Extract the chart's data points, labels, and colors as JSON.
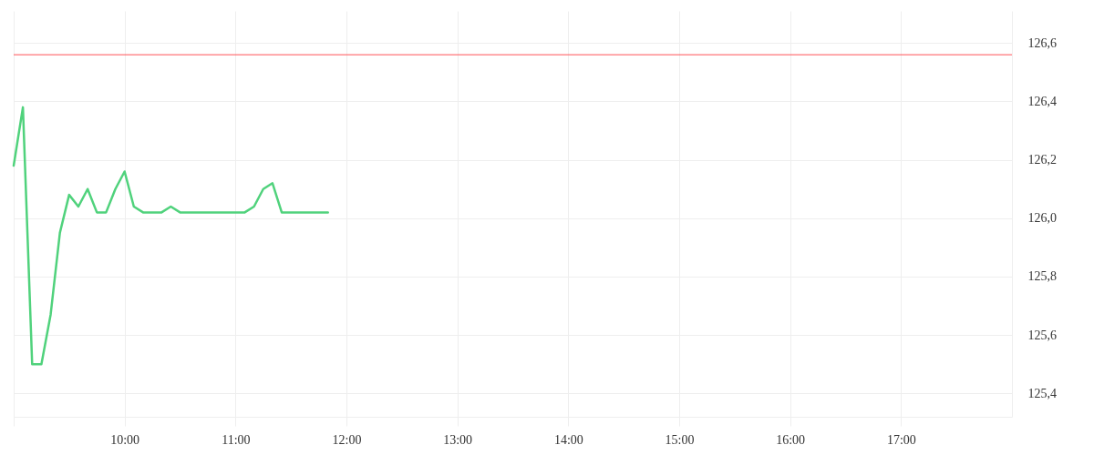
{
  "chart_data": {
    "type": "line",
    "x": [
      9,
      9.0833,
      9.1667,
      9.25,
      9.3333,
      9.4167,
      9.5,
      9.5833,
      9.6667,
      9.75,
      9.8333,
      9.9167,
      10,
      10.0833,
      10.1667,
      10.25,
      10.3333,
      10.4167,
      10.5,
      10.5833,
      10.6667,
      10.75,
      10.8333,
      10.9167,
      11,
      11.0833,
      11.1667,
      11.25,
      11.3333,
      11.4167,
      11.5,
      11.5833,
      11.6667,
      11.75,
      11.8333
    ],
    "series": [
      {
        "color": "#50d27c",
        "values": [
          126.18,
          126.38,
          125.5,
          125.5,
          125.67,
          125.95,
          126.08,
          126.04,
          126.1,
          126.02,
          126.02,
          126.1,
          126.16,
          126.04,
          126.02,
          126.02,
          126.02,
          126.04,
          126.02,
          126.02,
          126.02,
          126.02,
          126.02,
          126.02,
          126.02,
          126.02,
          126.04,
          126.1,
          126.12,
          126.02,
          126.02,
          126.02,
          126.02,
          126.02,
          126.02
        ]
      }
    ],
    "xlim": [
      9,
      18
    ],
    "xticks": [
      {
        "value": 9,
        "label": null
      },
      {
        "value": 10,
        "label": "10:00"
      },
      {
        "value": 11,
        "label": "11:00"
      },
      {
        "value": 12,
        "label": "12:00"
      },
      {
        "value": 13,
        "label": "13:00"
      },
      {
        "value": 14,
        "label": "14:00"
      },
      {
        "value": 15,
        "label": "15:00"
      },
      {
        "value": 16,
        "label": "16:00"
      },
      {
        "value": 17,
        "label": "17:00"
      }
    ],
    "ylim": [
      125.32,
      126.71
    ],
    "yticks": [
      {
        "value": 125.4,
        "label": "125,4"
      },
      {
        "value": 125.6,
        "label": "125,6"
      },
      {
        "value": 125.8,
        "label": "125,8"
      },
      {
        "value": 126.0,
        "label": "126,0"
      },
      {
        "value": 126.2,
        "label": "126,2"
      },
      {
        "value": 126.4,
        "label": "126,4"
      },
      {
        "value": 126.6,
        "label": "126,6"
      }
    ],
    "grid": true,
    "line_style": "solid",
    "ref_lines": [
      {
        "axis": "y",
        "value": 126.56,
        "color": "#ff5256"
      }
    ]
  }
}
